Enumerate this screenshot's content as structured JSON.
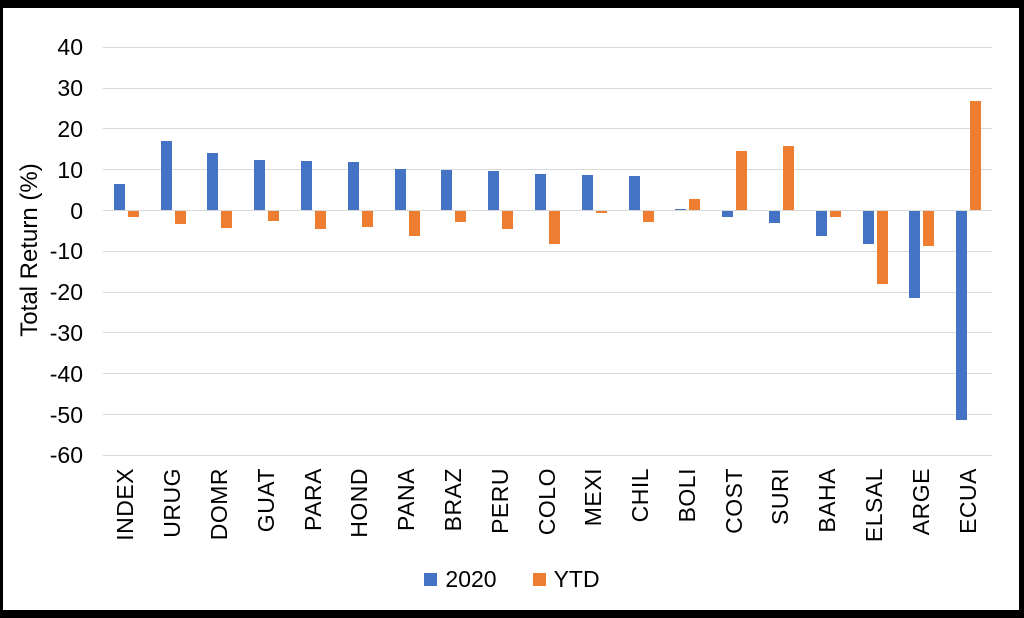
{
  "chart_data": {
    "type": "bar",
    "title": "",
    "ylabel": "Total Return (%)",
    "categories": [
      "INDEX",
      "URUG",
      "DOMR",
      "GUAT",
      "PARA",
      "HOND",
      "PANA",
      "BRAZ",
      "PERU",
      "COLO",
      "MEXI",
      "CHIL",
      "BOLI",
      "COST",
      "SURI",
      "BAHA",
      "ELSAL",
      "ARGE",
      "ECUA"
    ],
    "series": [
      {
        "name": "2020",
        "color": "#4472C4",
        "values": [
          6.5,
          17.0,
          14.0,
          12.4,
          12.2,
          12.0,
          10.1,
          9.8,
          9.6,
          9.0,
          8.7,
          8.5,
          0.4,
          -1.6,
          -3.0,
          -6.3,
          -8.3,
          -21.5,
          -51.3
        ]
      },
      {
        "name": "YTD",
        "color": "#ED7D31",
        "values": [
          -1.5,
          -3.3,
          -4.4,
          -2.6,
          -4.6,
          -4.0,
          -6.2,
          -2.7,
          -4.6,
          -8.3,
          -0.7,
          -2.9,
          2.8,
          14.5,
          15.7,
          -1.7,
          -18.1,
          -8.7,
          26.8
        ]
      }
    ],
    "ylim": [
      -60,
      40
    ],
    "yticks": [
      40,
      30,
      20,
      10,
      0,
      -10,
      -20,
      -30,
      -40,
      -50,
      -60
    ],
    "grid": true,
    "legend_position": "bottom"
  },
  "colors": {
    "gridline": "#D9D9D9",
    "frame": "#000000",
    "background": "#FFFFFF",
    "text": "#000000"
  }
}
